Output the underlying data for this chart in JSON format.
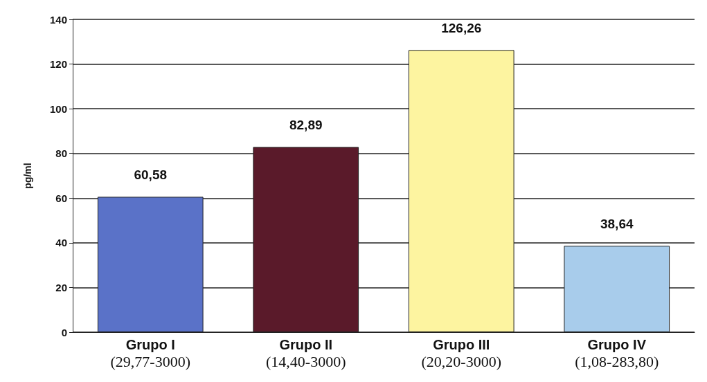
{
  "chart_data": {
    "type": "bar",
    "ylabel": "pg/ml",
    "categories": [
      "Grupo I\n(29,77-3000)",
      "Grupo II\n(14,40-3000)",
      "Grupo III\n(20,20-3000)",
      "Grupo IV\n(1,08-283,80)"
    ],
    "values": [
      60.58,
      82.89,
      126.26,
      38.64
    ],
    "colors": [
      "#5a72c8",
      "#5a1a2a",
      "#fdf4a0",
      "#a8cceb"
    ],
    "value_labels": [
      "60,58",
      "82,89",
      "126,26",
      "38,64"
    ],
    "ylim": [
      0,
      140
    ],
    "yticks": [
      0,
      20,
      40,
      60,
      80,
      100,
      120,
      140
    ],
    "grid": "y"
  }
}
